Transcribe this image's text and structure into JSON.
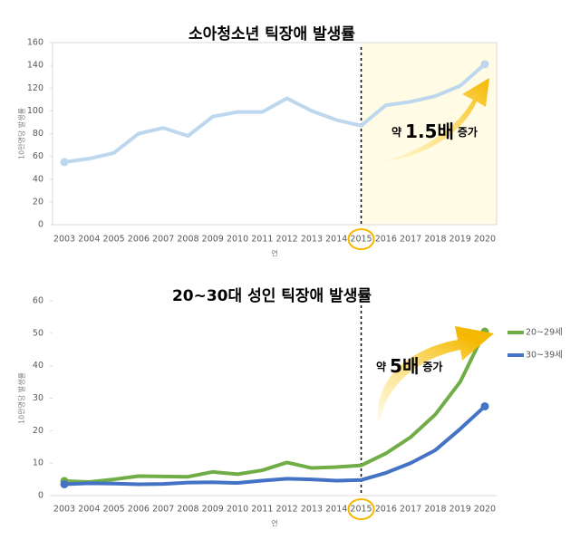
{
  "chart_data": [
    {
      "type": "line",
      "title": "소아청소년 틱장애 발생률",
      "y_label": "10만명당 발생률",
      "x_label": "연",
      "categories": [
        "2003",
        "2004",
        "2005",
        "2006",
        "2007",
        "2008",
        "2009",
        "2010",
        "2011",
        "2012",
        "2013",
        "2014",
        "2015",
        "2016",
        "2017",
        "2018",
        "2019",
        "2020"
      ],
      "series": [
        {
          "name": null,
          "color": "#bdd7ee",
          "values": [
            55,
            58,
            63,
            80,
            85,
            78,
            95,
            99,
            99,
            111,
            100,
            92,
            87,
            105,
            108,
            113,
            122,
            141
          ]
        }
      ],
      "ylim": [
        0,
        160
      ],
      "yticks": [
        0,
        20,
        40,
        60,
        80,
        100,
        120,
        140,
        160
      ],
      "reference_line": "2015",
      "highlight_region": true,
      "annotation": [
        "약",
        "1.5배",
        "증가"
      ]
    },
    {
      "type": "line",
      "title": "20~30대 성인 틱장애 발생률",
      "y_label": "10만명당 발생률",
      "x_label": "연",
      "categories": [
        "2003",
        "2004",
        "2005",
        "2006",
        "2007",
        "2008",
        "2009",
        "2010",
        "2011",
        "2012",
        "2013",
        "2014",
        "2015",
        "2016",
        "2017",
        "2018",
        "2019",
        "2020"
      ],
      "series": [
        {
          "name": "20~29세",
          "color": "#70ad47",
          "values": [
            4.5,
            4.2,
            5,
            6,
            5.9,
            5.8,
            7.3,
            6.6,
            7.8,
            10.2,
            8.5,
            8.8,
            9.3,
            13,
            18,
            25,
            35,
            50.5
          ]
        },
        {
          "name": "30~39세",
          "color": "#4472c4",
          "values": [
            3.5,
            3.8,
            3.7,
            3.5,
            3.6,
            4,
            4.1,
            3.9,
            4.6,
            5.2,
            5,
            4.6,
            4.8,
            7,
            10,
            14,
            20.5,
            27.5
          ]
        }
      ],
      "ylim": [
        0,
        60
      ],
      "yticks": [
        0,
        10,
        20,
        30,
        40,
        50,
        60
      ],
      "reference_line": "2015",
      "highlight_region": false,
      "legend": "right",
      "annotation": [
        "약",
        "5배",
        "증가"
      ]
    }
  ]
}
